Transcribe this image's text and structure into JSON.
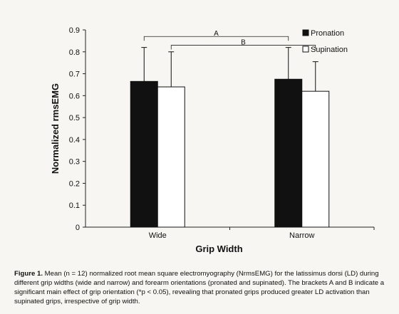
{
  "chart_data": {
    "type": "bar",
    "categories": [
      "Wide",
      "Narrow"
    ],
    "series": [
      {
        "name": "Pronation",
        "values": [
          0.665,
          0.675
        ],
        "errors": [
          0.155,
          0.145
        ],
        "color": "#111111"
      },
      {
        "name": "Supination",
        "values": [
          0.64,
          0.62
        ],
        "errors": [
          0.16,
          0.135
        ],
        "color": "#ffffff"
      }
    ],
    "xlabel": "Grip Width",
    "ylabel": "Normalized rmsEMG",
    "ylim": [
      0,
      0.9
    ],
    "yticks": [
      "0",
      "0.1",
      "0.2",
      "0.3",
      "0.4",
      "0.5",
      "0.6",
      "0.7",
      "0.8",
      "0.9"
    ],
    "grid": false,
    "legend_position": "top-right",
    "brackets": [
      {
        "label": "A",
        "from_category": 0,
        "from_series": 0,
        "to_category": 1,
        "to_series": 0,
        "y": 0.87
      },
      {
        "label": "B",
        "from_category": 0,
        "from_series": 1,
        "to_category": 1,
        "to_series": 1,
        "y": 0.83
      }
    ]
  },
  "caption": {
    "label": "Figure 1.",
    "text": "Mean (n = 12) normalized root mean square electromyography (NrmsEMG) for the latissimus dorsi (LD) during different grip widths (wide and narrow) and forearm orientations (pronated and supinated). The brackets A and B indicate a significant main effect of grip orientation (*p < 0.05), revealing that pronated grips produced greater LD activation than supinated grips, irrespective of grip width."
  }
}
